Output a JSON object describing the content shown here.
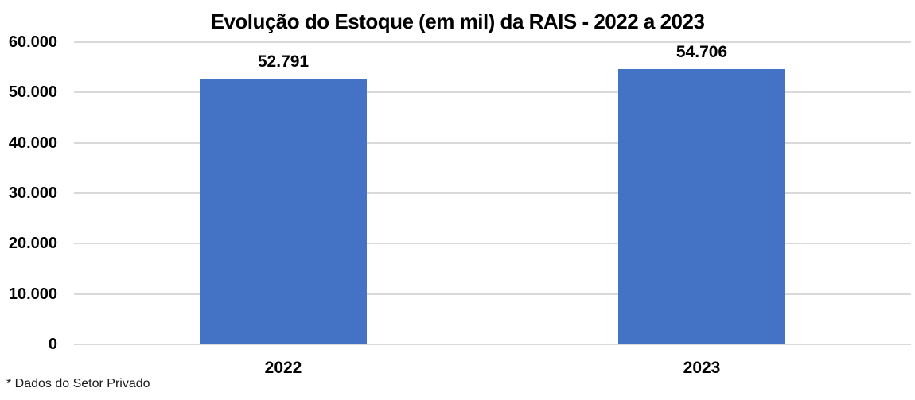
{
  "chart_data": {
    "type": "bar",
    "title": "Evolução do Estoque (em mil) da RAIS - 2022 a 2023",
    "categories": [
      "2022",
      "2023"
    ],
    "values": [
      52791,
      54706
    ],
    "value_labels": [
      "52.791",
      "54.706"
    ],
    "y_ticks": [
      {
        "value": 0,
        "label": "0"
      },
      {
        "value": 10000,
        "label": "10.000"
      },
      {
        "value": 20000,
        "label": "20.000"
      },
      {
        "value": 30000,
        "label": "30.000"
      },
      {
        "value": 40000,
        "label": "40.000"
      },
      {
        "value": 50000,
        "label": "50.000"
      },
      {
        "value": 60000,
        "label": "60.000"
      }
    ],
    "ylim": [
      0,
      60000
    ],
    "xlabel": "",
    "ylabel": "",
    "grid": true,
    "legend_position": "none",
    "bar_color": "#4472C4",
    "gridline_color": "#D9D9D9",
    "footnote": "* Dados do Setor Privado"
  }
}
